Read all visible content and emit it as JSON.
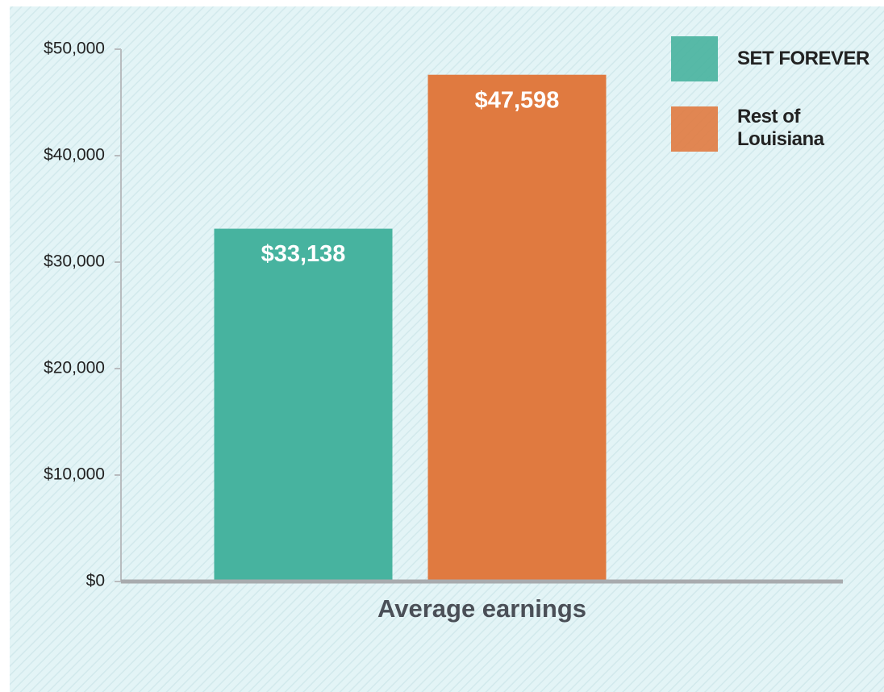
{
  "chart_data": {
    "type": "bar",
    "categories": [
      "Average earnings"
    ],
    "series": [
      {
        "name": "SET FOREVER",
        "color": "#47b39f",
        "values": [
          33138
        ],
        "value_labels": [
          "$33,138"
        ]
      },
      {
        "name": "Rest of Louisiana",
        "color": "#e07a40",
        "values": [
          47598
        ],
        "value_labels": [
          "$47,598"
        ]
      }
    ],
    "ylim": [
      0,
      50000
    ],
    "yticks": [
      {
        "value": 0,
        "label": "$0"
      },
      {
        "value": 10000,
        "label": "$10,000"
      },
      {
        "value": 20000,
        "label": "$20,000"
      },
      {
        "value": 30000,
        "label": "$30,000"
      },
      {
        "value": 40000,
        "label": "$40,000"
      },
      {
        "value": 50000,
        "label": "$50,000"
      }
    ],
    "legend": "top-right"
  }
}
